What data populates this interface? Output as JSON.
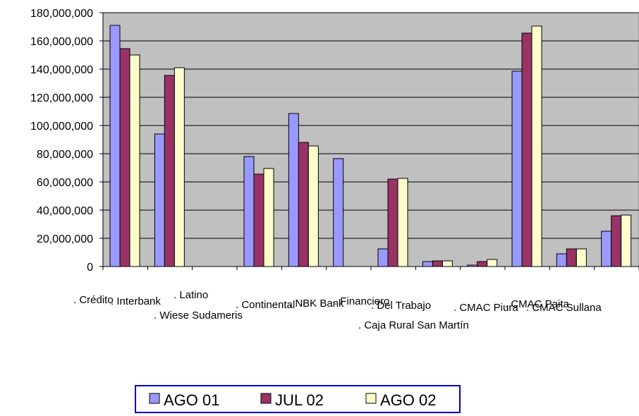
{
  "chart_data": {
    "type": "bar",
    "title": "",
    "xlabel": "",
    "ylabel": "",
    "ylim": [
      0,
      180000000
    ],
    "yticks": [
      "0",
      "20,000,000",
      "40,000,000",
      "60,000,000",
      "80,000,000",
      "100,000,000",
      "120,000,000",
      "140,000,000",
      "160,000,000",
      "180,000,000"
    ],
    "grid": true,
    "legend_position": "bottom",
    "categories": [
      ". Crédito",
      ". Interbank",
      ". Latino",
      ". Continental",
      ". NBK Bank",
      ". Financiero",
      ". Del Trabajo",
      ". Caja Rural San Martín",
      ". CMAC Piura",
      ". CMAC Paita",
      ". CMAC Sullana",
      ". Wiese Sudameris"
    ],
    "series": [
      {
        "name": "AGO 01",
        "color": "#9999ff",
        "values": [
          171000000,
          94000000,
          0,
          78000000,
          108500000,
          76500000,
          12500000,
          3500000,
          1000000,
          138500000,
          9000000,
          25000000
        ]
      },
      {
        "name": "JUL 02",
        "color": "#993366",
        "values": [
          154500000,
          135500000,
          0,
          65500000,
          88000000,
          0,
          62000000,
          4000000,
          3500000,
          165500000,
          12500000,
          36000000
        ]
      },
      {
        "name": "AGO 02",
        "color": "#ffffcc",
        "values": [
          150000000,
          141000000,
          0,
          69500000,
          85500000,
          0,
          62500000,
          4000000,
          5000000,
          170500000,
          12500000,
          36500000
        ]
      }
    ]
  }
}
